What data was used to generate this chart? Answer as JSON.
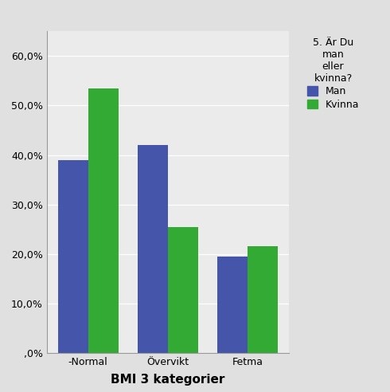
{
  "categories": [
    "-Normal",
    "Övervikt",
    "Fetma"
  ],
  "man_values": [
    39.0,
    42.0,
    19.5
  ],
  "kvinna_values": [
    53.5,
    25.5,
    21.5
  ],
  "man_color": "#4455aa",
  "kvinna_color": "#33aa33",
  "bar_width": 0.38,
  "ylim": [
    0,
    65
  ],
  "yticks": [
    0,
    10,
    20,
    30,
    40,
    50,
    60
  ],
  "ytick_labels": [
    ",0%",
    "10,0%",
    "20,0%",
    "30,0%",
    "40,0%",
    "50,0%",
    "60,0%"
  ],
  "xlabel": "BMI 3 kategorier",
  "legend_title": "5. Är Du\nman\neller\nkvinna?",
  "legend_entries": [
    "Man",
    "Kvinna"
  ],
  "background_color": "#e0e0e0",
  "plot_bg_color": "#ebebeb",
  "xlabel_fontsize": 11,
  "tick_fontsize": 9,
  "legend_fontsize": 9,
  "legend_title_fontsize": 9
}
